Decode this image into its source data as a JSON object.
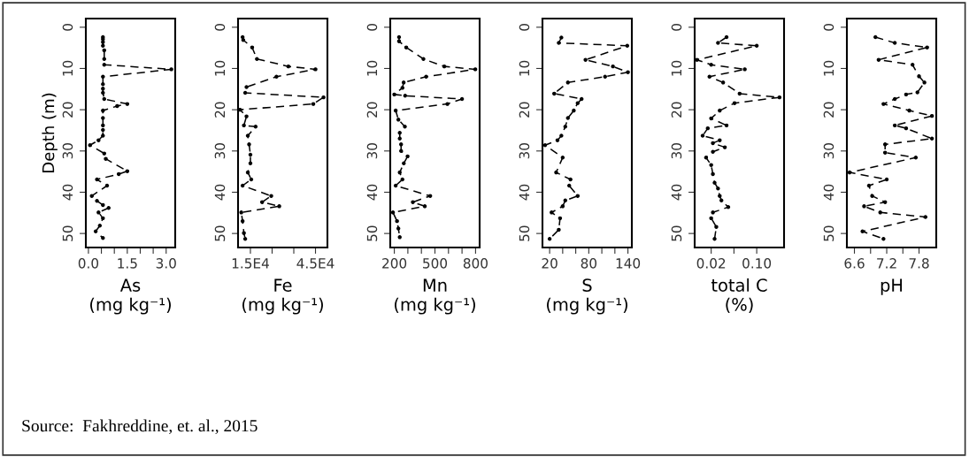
{
  "chart_data": [
    {
      "type": "line",
      "xlabel": "As\n(mg kg⁻¹)",
      "ylabel": "Depth (m)",
      "marker": "circle",
      "line_style": "dashed",
      "xlim": [
        -0.1,
        3.35
      ],
      "xticks": [
        {
          "value": 0,
          "label": "0.0"
        },
        {
          "value": 0.5,
          "label": null
        },
        {
          "value": 1.0,
          "label": null
        },
        1.5,
        {
          "value": 2.0,
          "label": null
        },
        {
          "value": 2.5,
          "label": null
        },
        {
          "value": 3,
          "label": "3.0"
        }
      ],
      "ylim": [
        53.4,
        -2.1
      ],
      "yticks": [
        0,
        10,
        20,
        30,
        40,
        50
      ],
      "annotations": [
        "Source:  Fakhreddine, et. al., 2015"
      ],
      "series": [
        {
          "color": "#000000",
          "x": [
            0.56,
            0.56,
            0.56,
            0.56,
            0.61,
            0.61,
            0.61,
            3.2,
            0.56,
            0.56,
            0.56,
            0.56,
            0.61,
            1.5,
            1.11,
            0.56,
            0.56,
            0.56,
            0.56,
            0.56,
            0.39,
            0.06,
            0.61,
            0.67,
            1.5,
            1.17,
            0.33,
            0.72,
            0.13,
            0.33,
            0.56,
            0.78,
            0.39,
            0.56,
            0.44,
            0.28,
            0.56
          ],
          "values": [
            2.4,
            2.9,
            3.6,
            4.5,
            5.6,
            7.7,
            9.1,
            10.2,
            12.0,
            13.8,
            14.9,
            15.9,
            17.4,
            18.6,
            19.1,
            20.2,
            22.0,
            23.8,
            24.9,
            26.3,
            27.4,
            28.6,
            30.6,
            31.9,
            34.9,
            35.6,
            36.9,
            38.4,
            40.9,
            42.1,
            43.1,
            43.8,
            44.9,
            46.3,
            48.1,
            49.5,
            51.1
          ]
        }
      ]
    },
    {
      "type": "line",
      "xlabel": "Fe\n(mg kg⁻¹)",
      "marker": "circle",
      "line_style": "dashed",
      "xlim": [
        9300,
        50500
      ],
      "xticks": [
        {
          "value": 15000,
          "label": "1.5E4"
        },
        {
          "value": 25000,
          "label": null
        },
        {
          "value": 35000,
          "label": null
        },
        {
          "value": 45000,
          "label": "4.5E4"
        }
      ],
      "ylim": [
        53.4,
        -2.1
      ],
      "yticks": [
        0,
        10,
        20,
        30,
        40,
        50
      ],
      "series": [
        {
          "color": "#000000",
          "x": [
            11400,
            11700,
            15800,
            18000,
            32500,
            45000,
            27000,
            13200,
            12600,
            48700,
            44000,
            10200,
            13200,
            12000,
            17400,
            13800,
            14400,
            15000,
            15000,
            13800,
            15400,
            11400,
            24600,
            20400,
            28300,
            10800,
            11400,
            12000,
            12600
          ],
          "values": [
            2.4,
            3.1,
            4.9,
            7.7,
            9.5,
            10.2,
            12.0,
            14.5,
            15.9,
            17.0,
            18.6,
            20.0,
            21.6,
            23.8,
            24.1,
            26.3,
            28.4,
            30.9,
            33.0,
            35.2,
            36.9,
            38.4,
            40.9,
            42.4,
            43.4,
            44.9,
            47.0,
            49.9,
            51.3
          ]
        }
      ]
    },
    {
      "type": "line",
      "xlabel": "Mn\n(mg kg⁻¹)",
      "marker": "circle",
      "line_style": "dashed",
      "xlim": [
        170,
        830
      ],
      "xticks": [
        200,
        {
          "value": 300,
          "label": null
        },
        {
          "value": 400,
          "label": null
        },
        500,
        {
          "value": 600,
          "label": null
        },
        {
          "value": 700,
          "label": null
        },
        800
      ],
      "ylim": [
        53.4,
        -2.1
      ],
      "yticks": [
        0,
        10,
        20,
        30,
        40,
        50
      ],
      "series": [
        {
          "color": "#000000",
          "x": [
            235,
            235,
            288,
            415,
            569,
            798,
            435,
            269,
            260,
            200,
            280,
            700,
            592,
            210,
            230,
            278,
            240,
            240,
            250,
            250,
            298,
            270,
            240,
            260,
            210,
            465,
            337,
            425,
            190,
            220,
            230,
            240
          ],
          "values": [
            2.4,
            3.4,
            4.9,
            7.7,
            9.5,
            10.2,
            12.0,
            13.4,
            14.7,
            16.3,
            16.6,
            17.4,
            18.6,
            20.2,
            22.4,
            24.1,
            25.6,
            27.0,
            28.4,
            30.0,
            31.3,
            33.0,
            35.2,
            36.9,
            38.4,
            40.9,
            42.4,
            43.4,
            44.9,
            47.0,
            48.8,
            50.9
          ]
        }
      ]
    },
    {
      "type": "line",
      "xlabel": "S\n(mg kg⁻¹)",
      "marker": "circle",
      "line_style": "dashed",
      "xlim": [
        9,
        146
      ],
      "xticks": [
        20,
        {
          "value": 40,
          "label": null
        },
        {
          "value": 60,
          "label": null
        },
        80,
        {
          "value": 100,
          "label": null
        },
        {
          "value": 120,
          "label": null
        },
        140
      ],
      "ylim": [
        53.4,
        -2.1
      ],
      "yticks": [
        0,
        10,
        20,
        30,
        40,
        50
      ],
      "series": [
        {
          "color": "#000000",
          "x": [
            38,
            34,
            139,
            75,
            117,
            140,
            105,
            48,
            27,
            69,
            63,
            57,
            48,
            44,
            38,
            32,
            13,
            40,
            30,
            52,
            50,
            63,
            44,
            40,
            23,
            36,
            34,
            20
          ],
          "values": [
            2.5,
            3.8,
            4.5,
            7.9,
            9.5,
            10.9,
            12.0,
            13.4,
            16.1,
            17.4,
            18.4,
            20.2,
            22.0,
            24.1,
            26.3,
            27.4,
            28.6,
            31.6,
            35.2,
            36.9,
            38.4,
            40.9,
            42.0,
            43.4,
            44.9,
            46.3,
            49.1,
            51.3
          ]
        }
      ]
    },
    {
      "type": "line",
      "xlabel": "total C\n(%)",
      "marker": "circle",
      "line_style": "dashed",
      "xlim": [
        -0.009,
        0.148
      ],
      "xticks": [
        0.02,
        {
          "value": 0.06,
          "label": null
        },
        {
          "value": 0.1,
          "label": "0.10"
        }
      ],
      "ylim": [
        53.4,
        -2.1
      ],
      "yticks": [
        0,
        10,
        20,
        30,
        40,
        50
      ],
      "series": [
        {
          "color": "#000000",
          "x": [
            0.047,
            0.032,
            0.1,
            -0.005,
            0.02,
            0.079,
            0.017,
            0.041,
            0.07,
            0.14,
            0.061,
            0.035,
            0.02,
            0.047,
            0.014,
            0.005,
            0.035,
            0.023,
            0.044,
            0.023,
            0.011,
            0.02,
            0.023,
            0.026,
            0.032,
            0.035,
            0.038,
            0.05,
            0.023,
            0.02,
            0.029,
            0.026
          ],
          "values": [
            2.4,
            3.8,
            4.5,
            7.9,
            9.1,
            10.2,
            12.0,
            13.4,
            16.1,
            17.0,
            18.4,
            20.2,
            22.1,
            23.8,
            24.5,
            26.3,
            27.4,
            28.1,
            29.1,
            30.2,
            31.6,
            33.4,
            35.6,
            37.7,
            39.1,
            40.9,
            42.0,
            43.6,
            44.9,
            46.3,
            48.4,
            51.3
          ]
        }
      ]
    },
    {
      "type": "line",
      "xlabel": "pH",
      "marker": "circle",
      "line_style": "dashed",
      "xlim": [
        6.46,
        8.12
      ],
      "xticks": [
        6.6,
        {
          "value": 6.9,
          "label": null
        },
        7.2,
        {
          "value": 7.5,
          "label": null
        },
        7.8
      ],
      "ylim": [
        53.4,
        -2.1
      ],
      "yticks": [
        0,
        10,
        20,
        30,
        40,
        50
      ],
      "series": [
        {
          "color": "#000000",
          "x": [
            6.99,
            7.35,
            7.95,
            7.05,
            7.68,
            7.8,
            7.9,
            7.77,
            7.56,
            7.35,
            7.14,
            7.62,
            8.04,
            7.35,
            7.56,
            8.04,
            7.17,
            7.17,
            7.74,
            6.51,
            7.2,
            6.87,
            6.93,
            7.17,
            6.78,
            7.08,
            7.92,
            6.75,
            7.14
          ],
          "values": [
            2.4,
            3.8,
            4.9,
            7.9,
            9.1,
            11.9,
            13.4,
            15.8,
            16.3,
            17.4,
            18.6,
            20.2,
            21.5,
            23.8,
            24.5,
            27.0,
            28.4,
            30.4,
            31.6,
            35.2,
            36.9,
            38.4,
            40.9,
            42.4,
            43.4,
            44.9,
            46.0,
            49.5,
            51.3
          ]
        }
      ]
    }
  ]
}
